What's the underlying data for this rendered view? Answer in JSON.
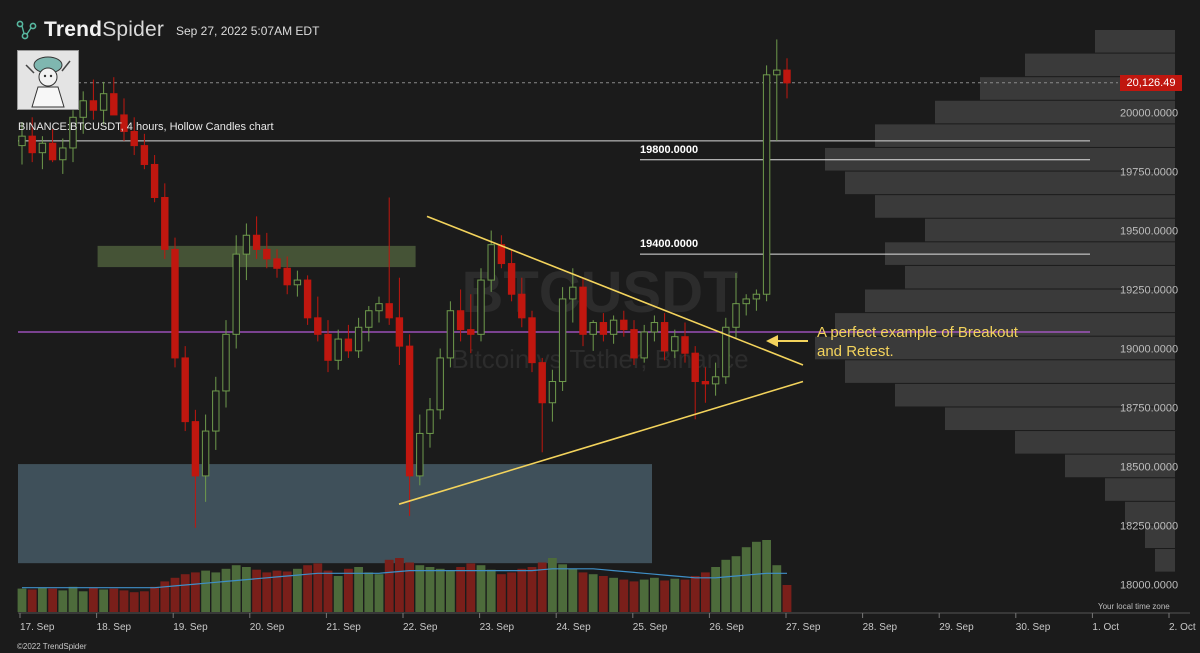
{
  "brand": {
    "name_part1": "Trend",
    "name_part2": "Spider",
    "logo_icon": "network-nodes-icon"
  },
  "timestamp": "Sep 27, 2022 5:07AM EDT",
  "symbol_label": "BINANCE:BTCUSDT, 4 hours, Hollow Candles chart",
  "watermark": {
    "line1": "BTCUSDT",
    "line2": "Bitcoin vs Tether, Binance"
  },
  "copyright": "©2022 TrendSpider",
  "local_time_label": "Your local time zone",
  "annotation": {
    "line1": "A perfect example of Breakout",
    "line2": "and Retest."
  },
  "colors": {
    "up": "#6e9a4c",
    "down": "#c0170f",
    "annotation": "#f3d35c",
    "support_line": "#b45ad6",
    "ma_line": "#3f8fc7"
  },
  "chart_data": {
    "type": "candlestick",
    "timeframe": "4 hours",
    "ylim": [
      17900,
      20350
    ],
    "y_ticks": [
      "20000.0000",
      "19750.0000",
      "19500.0000",
      "19250.0000",
      "19000.0000",
      "18750.0000",
      "18500.0000",
      "18250.0000",
      "18000.0000"
    ],
    "y_tick_values": [
      20000,
      19750,
      19500,
      19250,
      19000,
      18750,
      18500,
      18250,
      18000
    ],
    "x_ticks": [
      "17. Sep",
      "18. Sep",
      "19. Sep",
      "20. Sep",
      "21. Sep",
      "22. Sep",
      "23. Sep",
      "24. Sep",
      "25. Sep",
      "26. Sep",
      "27. Sep",
      "28. Sep",
      "29. Sep",
      "30. Sep",
      "1. Oct",
      "2. Oct"
    ],
    "last_price": "20,126.49",
    "last_price_value": 20126.49,
    "horizontal_levels": [
      {
        "label": "19800.0000",
        "value": 19800
      },
      {
        "label": "19400.0000",
        "value": 19400
      }
    ],
    "extra_level_values": [
      19880,
      19070
    ],
    "zones": [
      {
        "from_index": 8,
        "to_index": 38,
        "low": 19345,
        "high": 19435
      },
      {
        "from_index": 0,
        "to_index": 102,
        "low": 18090,
        "high": 18510
      }
    ],
    "triangle": {
      "upper": {
        "from_index": 65,
        "from_value": 19560,
        "to_index": 124,
        "to_value": 18930
      },
      "lower": {
        "from_index": 61,
        "from_value": 18340,
        "to_index": 124,
        "to_value": 18860
      }
    },
    "candles": [
      {
        "o": 19860,
        "h": 19960,
        "l": 19780,
        "c": 19900
      },
      {
        "o": 19900,
        "h": 19980,
        "l": 19790,
        "c": 19830
      },
      {
        "o": 19830,
        "h": 19900,
        "l": 19760,
        "c": 19870
      },
      {
        "o": 19870,
        "h": 19930,
        "l": 19790,
        "c": 19800
      },
      {
        "o": 19800,
        "h": 19890,
        "l": 19740,
        "c": 19850
      },
      {
        "o": 19850,
        "h": 20010,
        "l": 19790,
        "c": 19980
      },
      {
        "o": 19980,
        "h": 20090,
        "l": 19910,
        "c": 20050
      },
      {
        "o": 20050,
        "h": 20140,
        "l": 19970,
        "c": 20010
      },
      {
        "o": 20010,
        "h": 20130,
        "l": 19950,
        "c": 20080
      },
      {
        "o": 20080,
        "h": 20150,
        "l": 19990,
        "c": 19990
      },
      {
        "o": 19990,
        "h": 20060,
        "l": 19880,
        "c": 19920
      },
      {
        "o": 19920,
        "h": 19980,
        "l": 19820,
        "c": 19860
      },
      {
        "o": 19860,
        "h": 19910,
        "l": 19760,
        "c": 19780
      },
      {
        "o": 19780,
        "h": 19820,
        "l": 19620,
        "c": 19640
      },
      {
        "o": 19640,
        "h": 19700,
        "l": 19380,
        "c": 19420
      },
      {
        "o": 19420,
        "h": 19470,
        "l": 18920,
        "c": 18960
      },
      {
        "o": 18960,
        "h": 19010,
        "l": 18650,
        "c": 18690
      },
      {
        "o": 18690,
        "h": 18740,
        "l": 18240,
        "c": 18460
      },
      {
        "o": 18460,
        "h": 18720,
        "l": 18350,
        "c": 18650
      },
      {
        "o": 18650,
        "h": 18880,
        "l": 18570,
        "c": 18820
      },
      {
        "o": 18820,
        "h": 19120,
        "l": 18750,
        "c": 19060
      },
      {
        "o": 19060,
        "h": 19480,
        "l": 19000,
        "c": 19400
      },
      {
        "o": 19400,
        "h": 19530,
        "l": 19290,
        "c": 19480
      },
      {
        "o": 19480,
        "h": 19560,
        "l": 19380,
        "c": 19420
      },
      {
        "o": 19420,
        "h": 19490,
        "l": 19340,
        "c": 19380
      },
      {
        "o": 19380,
        "h": 19420,
        "l": 19300,
        "c": 19340
      },
      {
        "o": 19340,
        "h": 19390,
        "l": 19230,
        "c": 19270
      },
      {
        "o": 19270,
        "h": 19330,
        "l": 19220,
        "c": 19290
      },
      {
        "o": 19290,
        "h": 19310,
        "l": 19100,
        "c": 19130
      },
      {
        "o": 19130,
        "h": 19220,
        "l": 19030,
        "c": 19060
      },
      {
        "o": 19060,
        "h": 19120,
        "l": 18900,
        "c": 18950
      },
      {
        "o": 18950,
        "h": 19080,
        "l": 18910,
        "c": 19040
      },
      {
        "o": 19040,
        "h": 19100,
        "l": 18960,
        "c": 18990
      },
      {
        "o": 18990,
        "h": 19130,
        "l": 18960,
        "c": 19090
      },
      {
        "o": 19090,
        "h": 19180,
        "l": 19030,
        "c": 19160
      },
      {
        "o": 19160,
        "h": 19220,
        "l": 19110,
        "c": 19190
      },
      {
        "o": 19190,
        "h": 19640,
        "l": 19100,
        "c": 19130
      },
      {
        "o": 19130,
        "h": 19300,
        "l": 18930,
        "c": 19010
      },
      {
        "o": 19010,
        "h": 19060,
        "l": 18290,
        "c": 18460
      },
      {
        "o": 18460,
        "h": 18720,
        "l": 18420,
        "c": 18640
      },
      {
        "o": 18640,
        "h": 18790,
        "l": 18580,
        "c": 18740
      },
      {
        "o": 18740,
        "h": 19000,
        "l": 18700,
        "c": 18960
      },
      {
        "o": 18960,
        "h": 19200,
        "l": 18920,
        "c": 19160
      },
      {
        "o": 19160,
        "h": 19250,
        "l": 19030,
        "c": 19080
      },
      {
        "o": 19080,
        "h": 19230,
        "l": 18980,
        "c": 19060
      },
      {
        "o": 19060,
        "h": 19340,
        "l": 19030,
        "c": 19290
      },
      {
        "o": 19290,
        "h": 19500,
        "l": 19240,
        "c": 19440
      },
      {
        "o": 19440,
        "h": 19480,
        "l": 19340,
        "c": 19360
      },
      {
        "o": 19360,
        "h": 19420,
        "l": 19200,
        "c": 19230
      },
      {
        "o": 19230,
        "h": 19300,
        "l": 19090,
        "c": 19130
      },
      {
        "o": 19130,
        "h": 19160,
        "l": 18900,
        "c": 18940
      },
      {
        "o": 18940,
        "h": 18960,
        "l": 18560,
        "c": 18770
      },
      {
        "o": 18770,
        "h": 18910,
        "l": 18690,
        "c": 18860
      },
      {
        "o": 18860,
        "h": 19260,
        "l": 18820,
        "c": 19210
      },
      {
        "o": 19210,
        "h": 19340,
        "l": 19110,
        "c": 19260
      },
      {
        "o": 19260,
        "h": 19300,
        "l": 19010,
        "c": 19060
      },
      {
        "o": 19060,
        "h": 19120,
        "l": 18990,
        "c": 19110
      },
      {
        "o": 19110,
        "h": 19150,
        "l": 19030,
        "c": 19060
      },
      {
        "o": 19060,
        "h": 19140,
        "l": 19020,
        "c": 19120
      },
      {
        "o": 19120,
        "h": 19160,
        "l": 19050,
        "c": 19080
      },
      {
        "o": 19080,
        "h": 19120,
        "l": 18930,
        "c": 18960
      },
      {
        "o": 18960,
        "h": 19100,
        "l": 18940,
        "c": 19070
      },
      {
        "o": 19070,
        "h": 19140,
        "l": 19030,
        "c": 19110
      },
      {
        "o": 19110,
        "h": 19150,
        "l": 18950,
        "c": 18990
      },
      {
        "o": 18990,
        "h": 19080,
        "l": 18960,
        "c": 19050
      },
      {
        "o": 19050,
        "h": 19110,
        "l": 18940,
        "c": 18980
      },
      {
        "o": 18980,
        "h": 19010,
        "l": 18700,
        "c": 18860
      },
      {
        "o": 18860,
        "h": 18920,
        "l": 18770,
        "c": 18850
      },
      {
        "o": 18850,
        "h": 18940,
        "l": 18800,
        "c": 18880
      },
      {
        "o": 18880,
        "h": 19130,
        "l": 18850,
        "c": 19090
      },
      {
        "o": 19090,
        "h": 19320,
        "l": 19040,
        "c": 19190
      },
      {
        "o": 19190,
        "h": 19230,
        "l": 19140,
        "c": 19210
      },
      {
        "o": 19210,
        "h": 19250,
        "l": 19160,
        "c": 19230
      },
      {
        "o": 19230,
        "h": 20200,
        "l": 19200,
        "c": 20160
      },
      {
        "o": 20160,
        "h": 20310,
        "l": 19880,
        "c": 20180
      },
      {
        "o": 20180,
        "h": 20230,
        "l": 20060,
        "c": 20126
      }
    ],
    "volume": [
      26,
      25,
      27,
      26,
      24,
      28,
      23,
      27,
      25,
      26,
      24,
      22,
      23,
      28,
      34,
      38,
      42,
      44,
      46,
      44,
      48,
      52,
      50,
      47,
      44,
      46,
      45,
      48,
      52,
      54,
      46,
      40,
      48,
      50,
      44,
      42,
      58,
      60,
      55,
      52,
      50,
      48,
      46,
      50,
      54,
      52,
      47,
      42,
      44,
      48,
      50,
      55,
      60,
      53,
      48,
      44,
      42,
      40,
      38,
      36,
      34,
      36,
      38,
      35,
      37,
      36,
      40,
      44,
      50,
      58,
      62,
      72,
      78,
      80,
      52,
      30
    ],
    "ma": [
      27,
      27,
      27,
      27,
      27,
      27,
      27,
      27,
      27,
      27,
      27,
      27,
      27,
      27,
      28,
      29,
      30,
      31,
      32,
      33,
      34,
      35,
      36,
      37,
      38,
      39,
      40,
      41,
      42,
      43,
      43,
      43,
      43,
      43,
      43,
      43,
      44,
      45,
      46,
      46,
      46,
      46,
      46,
      46,
      46,
      46,
      46,
      46,
      46,
      46,
      46,
      47,
      48,
      48,
      48,
      48,
      48,
      47,
      46,
      45,
      44,
      43,
      42,
      41,
      40,
      39,
      38,
      38,
      38,
      39,
      40,
      41,
      42,
      43,
      43,
      43
    ],
    "volume_profile": [
      {
        "value": 20300,
        "size": 80
      },
      {
        "value": 20200,
        "size": 150
      },
      {
        "value": 20100,
        "size": 195
      },
      {
        "value": 20000,
        "size": 240
      },
      {
        "value": 19900,
        "size": 300
      },
      {
        "value": 19800,
        "size": 350
      },
      {
        "value": 19700,
        "size": 330
      },
      {
        "value": 19600,
        "size": 300
      },
      {
        "value": 19500,
        "size": 250
      },
      {
        "value": 19400,
        "size": 290
      },
      {
        "value": 19300,
        "size": 270
      },
      {
        "value": 19200,
        "size": 310
      },
      {
        "value": 19100,
        "size": 340
      },
      {
        "value": 19000,
        "size": 360
      },
      {
        "value": 18900,
        "size": 330
      },
      {
        "value": 18800,
        "size": 280
      },
      {
        "value": 18700,
        "size": 230
      },
      {
        "value": 18600,
        "size": 160
      },
      {
        "value": 18500,
        "size": 110
      },
      {
        "value": 18400,
        "size": 70
      },
      {
        "value": 18300,
        "size": 50
      },
      {
        "value": 18200,
        "size": 30
      },
      {
        "value": 18100,
        "size": 20
      }
    ]
  }
}
